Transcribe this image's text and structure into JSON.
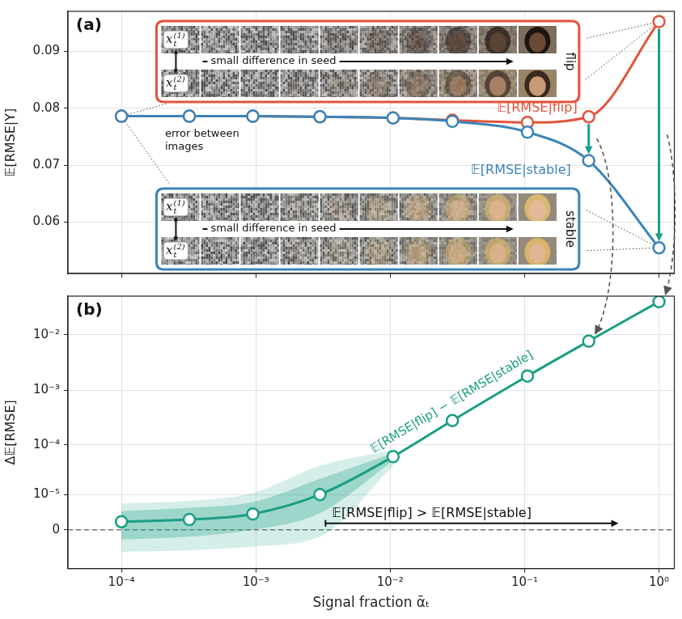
{
  "chart_data": [
    {
      "type": "line",
      "panel": "(a)",
      "y_label": "𝔼[RMSE|Y]",
      "log": "x",
      "grid": true,
      "tick_labels": "y",
      "x": [
        0.0001,
        0.00032,
        0.00095,
        0.003,
        0.0105,
        0.029,
        0.105,
        0.3,
        1.0
      ],
      "xlim": [
        4e-05,
        1.3
      ],
      "xticks": [
        {
          "value": 0.0001,
          "label": "10⁻⁴"
        },
        {
          "value": 0.001,
          "label": "10⁻³"
        },
        {
          "value": 0.01,
          "label": "10⁻²"
        },
        {
          "value": 0.1,
          "label": "10⁻¹"
        },
        {
          "value": 1,
          "label": "10⁰"
        }
      ],
      "ylim": [
        0.051,
        0.097
      ],
      "yticks": [
        0.06,
        0.07,
        0.08,
        0.09
      ],
      "series": [
        {
          "name": "𝔼[RMSE|flip]",
          "color": "#e0553b",
          "marker": "circle",
          "values": [
            0.0786,
            0.0786,
            0.0786,
            0.0785,
            0.0783,
            0.0779,
            0.0775,
            0.0785,
            0.0952
          ]
        },
        {
          "name": "𝔼[RMSE|stable]",
          "color": "#3b84b8",
          "marker": "circle",
          "values": [
            0.0786,
            0.0786,
            0.0786,
            0.0785,
            0.0783,
            0.0777,
            0.0758,
            0.0708,
            0.0555
          ]
        }
      ],
      "difference_arrows": {
        "x": [
          0.3,
          1.0
        ],
        "color": "#1a9e85"
      },
      "annotation": "error between images",
      "image_strips": [
        {
          "label": "flip",
          "color": "#e0553b",
          "seed_text": "small difference in seed",
          "seeds": [
            {
              "base": "x",
              "sub": "t",
              "sup": "(1)"
            },
            {
              "base": "x",
              "sub": "t",
              "sup": "(2)"
            }
          ]
        },
        {
          "label": "stable",
          "color": "#3b84b8",
          "seed_text": "small difference in seed",
          "seeds": [
            {
              "base": "x",
              "sub": "t",
              "sup": "(1)"
            },
            {
              "base": "x",
              "sub": "t",
              "sup": "(2)"
            }
          ]
        }
      ]
    },
    {
      "type": "line",
      "panel": "(b)",
      "y_label": "Δ𝔼[RMSE]",
      "x_label": "Signal fraction ᾱₜ",
      "log": true,
      "grid": true,
      "x": [
        0.0001,
        0.00032,
        0.00095,
        0.003,
        0.0105,
        0.029,
        0.105,
        0.3,
        1.0
      ],
      "xlim": [
        4e-05,
        1.3
      ],
      "xticks": [
        {
          "value": 0.0001,
          "label": "10⁻⁴"
        },
        {
          "value": 0.001,
          "label": "10⁻³"
        },
        {
          "value": 0.01,
          "label": "10⁻²"
        },
        {
          "value": 0.1,
          "label": "10⁻¹"
        },
        {
          "value": 1,
          "label": "10⁰"
        }
      ],
      "ylim": [
        -1.2e-05,
        0.05
      ],
      "yticks": [
        0,
        {
          "value": 1e-05,
          "label": "10⁻⁵"
        },
        {
          "value": 0.0001,
          "label": "10⁻⁴"
        },
        {
          "value": 0.001,
          "label": "10⁻³"
        },
        {
          "value": 0.01,
          "label": "10⁻²"
        }
      ],
      "reference_y": 0,
      "series": [
        {
          "name": "𝔼[RMSE|flip] − 𝔼[RMSE|stable]",
          "color": "#1a9e85",
          "marker": "circle",
          "values": [
            1.2e-06,
            1.6e-06,
            2.8e-06,
            1e-05,
            6e-05,
            0.00028,
            0.0018,
            0.0077,
            0.0397
          ],
          "bands": [
            {
              "lower": [
                -4.5e-06,
                -4e-06,
                -3e-06,
                -1e-06,
                4e-05,
                null,
                null,
                null,
                null
              ],
              "upper": [
                6e-06,
                7e-06,
                1.1e-05,
                4e-05,
                8e-05,
                null,
                null,
                null,
                null
              ]
            },
            {
              "lower": [
                -1.5e-06,
                -1e-06,
                0,
                3e-06,
                5e-05,
                null,
                null,
                null,
                null
              ],
              "upper": [
                3.5e-06,
                4.5e-06,
                6.5e-06,
                2.2e-05,
                7e-05,
                null,
                null,
                null,
                null
              ]
            }
          ]
        }
      ],
      "annotation": {
        "text": "𝔼[RMSE|flip] > 𝔼[RMSE|stable]",
        "x": [
          0.0033,
          0.5
        ]
      }
    }
  ]
}
